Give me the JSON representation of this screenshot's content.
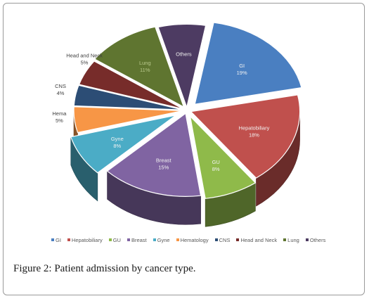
{
  "chart_data": {
    "type": "pie",
    "style": "3d-exploded",
    "title": "",
    "slices": [
      {
        "label": "GI",
        "value": 19,
        "percent_label": "19%",
        "color": "#4a7fc1"
      },
      {
        "label": "Hepatobiliary",
        "value": 18,
        "percent_label": "18%",
        "color": "#c0504d"
      },
      {
        "label": "GU",
        "value": 8,
        "percent_label": "8%",
        "color": "#8fba4a"
      },
      {
        "label": "Breast",
        "value": 15,
        "percent_label": "15%",
        "color": "#8064a2"
      },
      {
        "label": "Gyne",
        "value": 8,
        "percent_label": "8%",
        "color": "#4bacc6"
      },
      {
        "label": "Hema",
        "value": 5,
        "percent_label": "5%",
        "color": "#f79646"
      },
      {
        "label": "CNS",
        "value": 4,
        "percent_label": "4%",
        "color": "#2c4d75"
      },
      {
        "label": "Head and Neck",
        "value": 5,
        "percent_label": "5%",
        "color": "#772c2a"
      },
      {
        "label": "Lung",
        "value": 11,
        "percent_label": "11%",
        "color": "#5f7530"
      },
      {
        "label": "Others",
        "value": 7,
        "percent_label": "",
        "color": "#4d3b62"
      }
    ],
    "legend": {
      "placement": "bottom",
      "entries": [
        "GI",
        "Hepatobiliary",
        "GU",
        "Breast",
        "Gyne",
        "Hematology",
        "CNS",
        "Head and Neck",
        "Lung",
        "Others"
      ]
    }
  },
  "caption": {
    "label": "Figure 2:",
    "text": " Patient admission by cancer type."
  }
}
